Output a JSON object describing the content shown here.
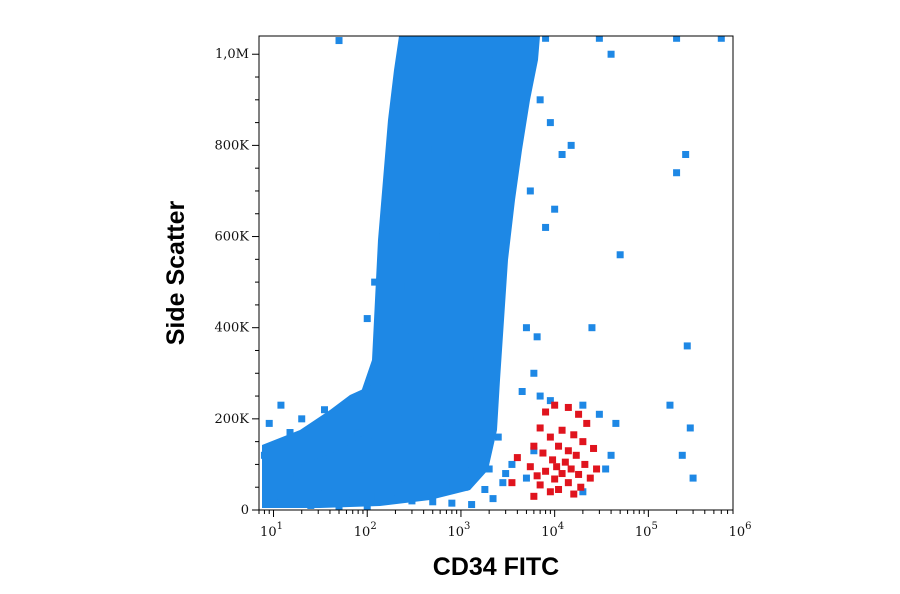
{
  "chart_data": {
    "type": "scatter",
    "xlabel": "CD34 FITC",
    "ylabel": "Side Scatter",
    "xscale": "log",
    "xlim": [
      7,
      800000
    ],
    "ylim": [
      0,
      1040000
    ],
    "x_ticks": [
      {
        "value": 10,
        "base": "10",
        "exp": "1"
      },
      {
        "value": 100,
        "base": "10",
        "exp": "2"
      },
      {
        "value": 1000,
        "base": "10",
        "exp": "3"
      },
      {
        "value": 10000,
        "base": "10",
        "exp": "4"
      },
      {
        "value": 100000,
        "base": "10",
        "exp": "5"
      },
      {
        "value": 1000000,
        "base": "10",
        "exp": "6"
      }
    ],
    "y_ticks": [
      {
        "value": 0,
        "label": "0"
      },
      {
        "value": 200000,
        "label": "200K"
      },
      {
        "value": 400000,
        "label": "400K"
      },
      {
        "value": 600000,
        "label": "600K"
      },
      {
        "value": 800000,
        "label": "800K"
      },
      {
        "value": 1000000,
        "label": "1,0M"
      }
    ],
    "grid": false,
    "legend": "none",
    "colors": {
      "main": "#1e88e5",
      "gated": "#e0141e"
    },
    "series": [
      {
        "color": "#1e88e5",
        "points": [
          [
            300,
            1020000
          ],
          [
            400,
            980000
          ],
          [
            500,
            940000
          ],
          [
            350,
            880000
          ],
          [
            600,
            860000
          ],
          [
            300,
            820000
          ],
          [
            450,
            790000
          ],
          [
            700,
            760000
          ],
          [
            280,
            740000
          ],
          [
            380,
            700000
          ],
          [
            520,
            680000
          ],
          [
            260,
            650000
          ],
          [
            420,
            620000
          ],
          [
            640,
            600000
          ],
          [
            240,
            580000
          ],
          [
            330,
            550000
          ],
          [
            480,
            520000
          ],
          [
            900,
            510000
          ],
          [
            230,
            490000
          ],
          [
            360,
            460000
          ],
          [
            560,
            440000
          ],
          [
            1200,
            420000
          ],
          [
            220,
            400000
          ],
          [
            300,
            380000
          ],
          [
            440,
            360000
          ],
          [
            700,
            340000
          ],
          [
            1500,
            330000
          ],
          [
            200,
            320000
          ],
          [
            280,
            300000
          ],
          [
            400,
            280000
          ],
          [
            650,
            260000
          ],
          [
            1100,
            250000
          ],
          [
            1800,
            240000
          ],
          [
            150,
            230000
          ],
          [
            250,
            215000
          ],
          [
            380,
            200000
          ],
          [
            600,
            190000
          ],
          [
            950,
            180000
          ],
          [
            1600,
            170000
          ],
          [
            2500,
            160000
          ],
          [
            80,
            170000
          ],
          [
            120,
            150000
          ],
          [
            200,
            140000
          ],
          [
            320,
            130000
          ],
          [
            500,
            120000
          ],
          [
            800,
            110000
          ],
          [
            1300,
            100000
          ],
          [
            2000,
            90000
          ],
          [
            3000,
            80000
          ],
          [
            40,
            120000
          ],
          [
            60,
            100000
          ],
          [
            90,
            90000
          ],
          [
            150,
            80000
          ],
          [
            250,
            70000
          ],
          [
            400,
            60000
          ],
          [
            700,
            55000
          ],
          [
            1100,
            50000
          ],
          [
            1800,
            45000
          ],
          [
            2800,
            60000
          ],
          [
            15,
            80000
          ],
          [
            20,
            60000
          ],
          [
            30,
            50000
          ],
          [
            45,
            40000
          ],
          [
            70,
            35000
          ],
          [
            110,
            30000
          ],
          [
            180,
            25000
          ],
          [
            300,
            20000
          ],
          [
            500,
            18000
          ],
          [
            800,
            15000
          ],
          [
            1300,
            12000
          ],
          [
            2200,
            25000
          ],
          [
            10,
            30000
          ],
          [
            12,
            15000
          ],
          [
            25,
            10000
          ],
          [
            50,
            8000
          ],
          [
            100,
            5000
          ],
          [
            9,
            190000
          ],
          [
            8,
            120000
          ],
          [
            20,
            200000
          ],
          [
            12,
            230000
          ],
          [
            35,
            220000
          ],
          [
            15,
            170000
          ],
          [
            150,
            600000
          ],
          [
            120,
            500000
          ],
          [
            100,
            420000
          ],
          [
            2000,
            1000000
          ],
          [
            2600,
            950000
          ],
          [
            4000,
            1030000
          ],
          [
            8000,
            1035000
          ],
          [
            30000,
            1035000
          ],
          [
            200000,
            1035000
          ],
          [
            50,
            1030000
          ],
          [
            600000,
            1035000
          ],
          [
            7000,
            900000
          ],
          [
            9000,
            850000
          ],
          [
            12000,
            780000
          ],
          [
            15000,
            800000
          ],
          [
            5500,
            700000
          ],
          [
            10000,
            660000
          ],
          [
            8000,
            620000
          ],
          [
            25000,
            400000
          ],
          [
            5000,
            400000
          ],
          [
            6500,
            380000
          ],
          [
            6000,
            300000
          ],
          [
            4500,
            260000
          ],
          [
            7000,
            250000
          ],
          [
            9000,
            240000
          ],
          [
            20000,
            230000
          ],
          [
            30000,
            210000
          ],
          [
            45000,
            190000
          ],
          [
            40000,
            120000
          ],
          [
            50000,
            560000
          ],
          [
            40000,
            1000000
          ],
          [
            250000,
            780000
          ],
          [
            200000,
            740000
          ],
          [
            260000,
            360000
          ],
          [
            170000,
            230000
          ],
          [
            280000,
            180000
          ],
          [
            230000,
            120000
          ],
          [
            300000,
            70000
          ],
          [
            6000,
            130000
          ],
          [
            3500,
            100000
          ],
          [
            5000,
            70000
          ],
          [
            20000,
            40000
          ],
          [
            35000,
            90000
          ]
        ]
      },
      {
        "color": "#e0141e",
        "points": [
          [
            10000,
            230000
          ],
          [
            14000,
            225000
          ],
          [
            8000,
            215000
          ],
          [
            18000,
            210000
          ],
          [
            22000,
            190000
          ],
          [
            7000,
            180000
          ],
          [
            12000,
            175000
          ],
          [
            16000,
            165000
          ],
          [
            9000,
            160000
          ],
          [
            20000,
            150000
          ],
          [
            6000,
            140000
          ],
          [
            11000,
            140000
          ],
          [
            26000,
            135000
          ],
          [
            14000,
            130000
          ],
          [
            7500,
            125000
          ],
          [
            17000,
            120000
          ],
          [
            4000,
            115000
          ],
          [
            9500,
            110000
          ],
          [
            13000,
            105000
          ],
          [
            21000,
            100000
          ],
          [
            5500,
            95000
          ],
          [
            10500,
            95000
          ],
          [
            15000,
            90000
          ],
          [
            28000,
            90000
          ],
          [
            8000,
            85000
          ],
          [
            12000,
            80000
          ],
          [
            18000,
            78000
          ],
          [
            6500,
            75000
          ],
          [
            24000,
            70000
          ],
          [
            10000,
            68000
          ],
          [
            3500,
            60000
          ],
          [
            14000,
            60000
          ],
          [
            7000,
            55000
          ],
          [
            19000,
            50000
          ],
          [
            11000,
            45000
          ],
          [
            9000,
            40000
          ],
          [
            16000,
            35000
          ],
          [
            6000,
            30000
          ]
        ]
      }
    ]
  }
}
